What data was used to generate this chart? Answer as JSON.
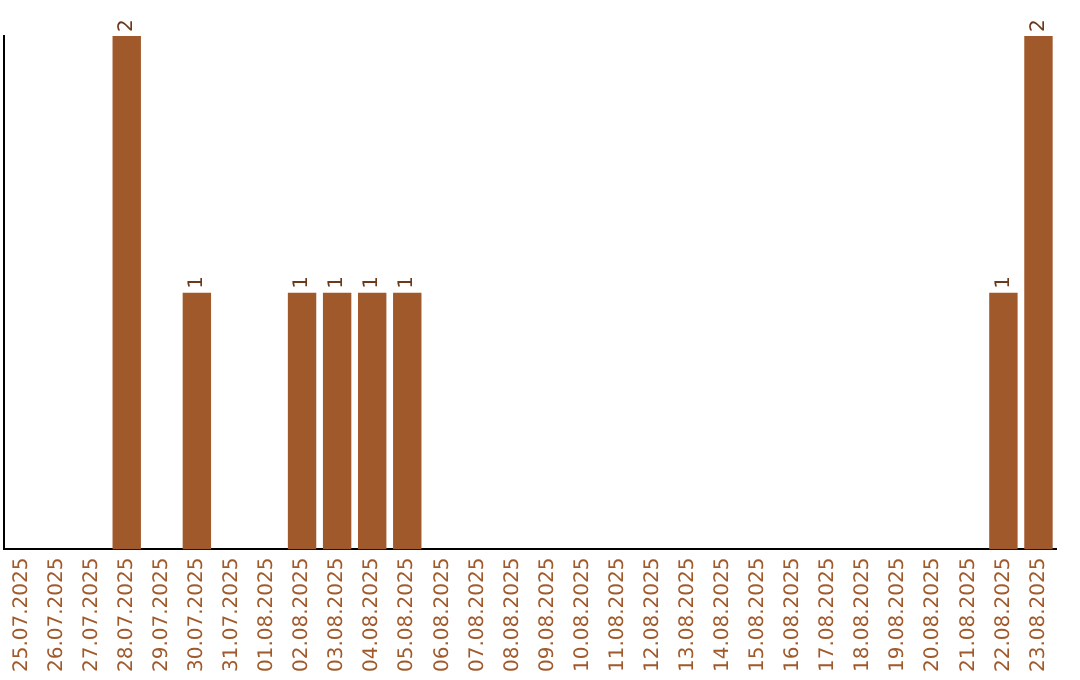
{
  "chart_data": {
    "type": "bar",
    "categories": [
      "25.07.2025",
      "26.07.2025",
      "27.07.2025",
      "28.07.2025",
      "29.07.2025",
      "30.07.2025",
      "31.07.2025",
      "01.08.2025",
      "02.08.2025",
      "03.08.2025",
      "04.08.2025",
      "05.08.2025",
      "06.08.2025",
      "07.08.2025",
      "08.08.2025",
      "09.08.2025",
      "10.08.2025",
      "11.08.2025",
      "12.08.2025",
      "13.08.2025",
      "14.08.2025",
      "15.08.2025",
      "16.08.2025",
      "17.08.2025",
      "18.08.2025",
      "19.08.2025",
      "20.08.2025",
      "21.08.2025",
      "22.08.2025",
      "23.08.2025"
    ],
    "values": [
      0,
      0,
      0,
      2,
      0,
      1,
      0,
      0,
      1,
      1,
      1,
      1,
      0,
      0,
      0,
      0,
      0,
      0,
      0,
      0,
      0,
      0,
      0,
      0,
      0,
      0,
      0,
      0,
      1,
      2
    ],
    "value_labels": [
      null,
      null,
      null,
      "2",
      null,
      "1",
      null,
      null,
      "1",
      "1",
      "1",
      "1",
      null,
      null,
      null,
      null,
      null,
      null,
      null,
      null,
      null,
      null,
      null,
      null,
      null,
      null,
      null,
      null,
      "1",
      "2"
    ],
    "color": "#a0592a",
    "grid": false,
    "tick_labels": "x"
  }
}
